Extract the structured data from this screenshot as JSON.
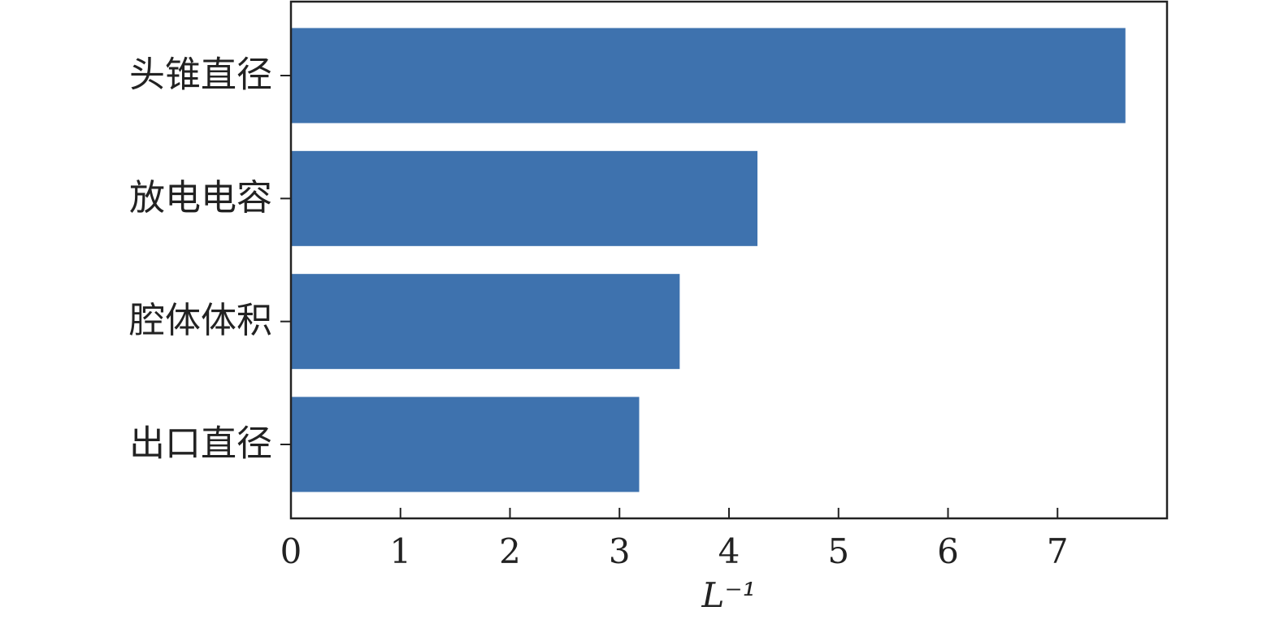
{
  "chart_data": {
    "type": "bar",
    "orientation": "horizontal",
    "categories": [
      "头锥直径",
      "放电电容",
      "腔体体积",
      "出口直径"
    ],
    "values": [
      7.62,
      4.26,
      3.55,
      3.18
    ],
    "color": "#3e72ae",
    "x_label": "L⁻¹",
    "xlim": [
      0,
      8
    ],
    "xticks": [
      0,
      1,
      2,
      3,
      4,
      5,
      6,
      7
    ],
    "grid": false
  }
}
